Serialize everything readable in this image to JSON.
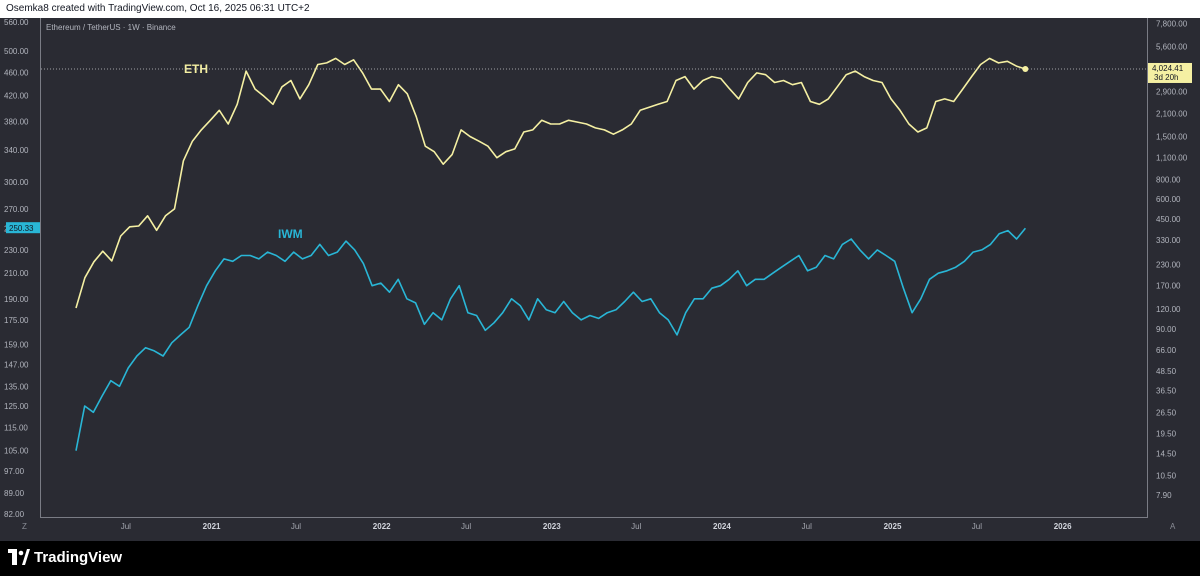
{
  "header": {
    "attribution": "Osemka8 created with TradingView.com, Oct 16, 2025 06:31 UTC+2"
  },
  "footer": {
    "brand": "TradingView"
  },
  "chart_data": {
    "type": "line",
    "title": "Ethereum / TetherUS · 1W · Binance",
    "x_ticks": [
      "Jul",
      "2021",
      "Jul",
      "2022",
      "Jul",
      "2023",
      "Jul",
      "2024",
      "Jul",
      "2025",
      "Jul",
      "2026"
    ],
    "left_axis": {
      "ticks": [
        "560.00",
        "500.00",
        "460.00",
        "420.00",
        "380.00",
        "340.00",
        "300.00",
        "270.00",
        "250.00",
        "230.00",
        "210.00",
        "190.00",
        "175.00",
        "159.00",
        "147.00",
        "135.00",
        "125.00",
        "115.00",
        "105.00",
        "97.00",
        "89.00",
        "82.00"
      ],
      "scale": "log",
      "range": [
        82,
        560
      ]
    },
    "right_axis": {
      "ticks": [
        "7,800.00",
        "5,600.00",
        "4,024.41",
        "2,900.00",
        "2,100.00",
        "1,500.00",
        "1,100.00",
        "800.00",
        "600.00",
        "450.00",
        "330.00",
        "230.00",
        "170.00",
        "120.00",
        "90.00",
        "66.00",
        "48.50",
        "36.50",
        "26.50",
        "19.50",
        "14.50",
        "10.50",
        "7.90"
      ],
      "scale": "log",
      "range": [
        6,
        8000
      ]
    },
    "corner_left": "Z",
    "corner_right": "A",
    "grid": false,
    "series": [
      {
        "name": "ETH",
        "axis": "right",
        "color": "#f5f0a3",
        "last_value": "4,024.41",
        "countdown": "3d 20h",
        "start": "2020-03-16",
        "end": "2025-10-13",
        "values": [
          122,
          190,
          240,
          280,
          243,
          350,
          400,
          405,
          470,
          380,
          470,
          520,
          1050,
          1400,
          1650,
          1900,
          2200,
          1800,
          2400,
          3900,
          3000,
          2700,
          2400,
          3100,
          3400,
          2600,
          3200,
          4300,
          4400,
          4700,
          4300,
          4600,
          3800,
          3000,
          3000,
          2500,
          3200,
          2800,
          2000,
          1300,
          1200,
          1000,
          1150,
          1650,
          1500,
          1400,
          1300,
          1100,
          1200,
          1250,
          1600,
          1650,
          1900,
          1800,
          1800,
          1900,
          1850,
          1800,
          1700,
          1650,
          1550,
          1650,
          1800,
          2200,
          2300,
          2400,
          2500,
          3400,
          3600,
          3000,
          3400,
          3600,
          3500,
          3000,
          2600,
          3300,
          3800,
          3700,
          3300,
          3400,
          3200,
          3300,
          2500,
          2400,
          2600,
          3100,
          3700,
          3900,
          3600,
          3400,
          3300,
          2600,
          2200,
          1800,
          1600,
          1700,
          2500,
          2600,
          2500,
          3000,
          3600,
          4300,
          4700,
          4400,
          4500,
          4200,
          4024.41
        ]
      },
      {
        "name": "IWM",
        "axis": "left",
        "color": "#29b6d6",
        "last_value": "250.33",
        "start": "2020-03-16",
        "end": "2025-10-13",
        "values": [
          105,
          125,
          122,
          130,
          138,
          135,
          145,
          152,
          157,
          155,
          152,
          160,
          165,
          170,
          185,
          200,
          212,
          222,
          220,
          225,
          225,
          222,
          228,
          225,
          220,
          228,
          222,
          225,
          235,
          225,
          228,
          238,
          230,
          218,
          200,
          202,
          195,
          205,
          190,
          187,
          172,
          180,
          175,
          190,
          200,
          180,
          178,
          168,
          173,
          180,
          190,
          185,
          175,
          190,
          182,
          180,
          188,
          180,
          175,
          178,
          176,
          180,
          182,
          188,
          195,
          188,
          190,
          180,
          175,
          165,
          180,
          190,
          190,
          198,
          200,
          205,
          212,
          200,
          205,
          205,
          210,
          215,
          220,
          225,
          212,
          215,
          225,
          222,
          235,
          240,
          230,
          222,
          230,
          225,
          220,
          198,
          180,
          190,
          205,
          210,
          212,
          215,
          220,
          228,
          230,
          235,
          245,
          248,
          240,
          250.33
        ]
      }
    ]
  }
}
